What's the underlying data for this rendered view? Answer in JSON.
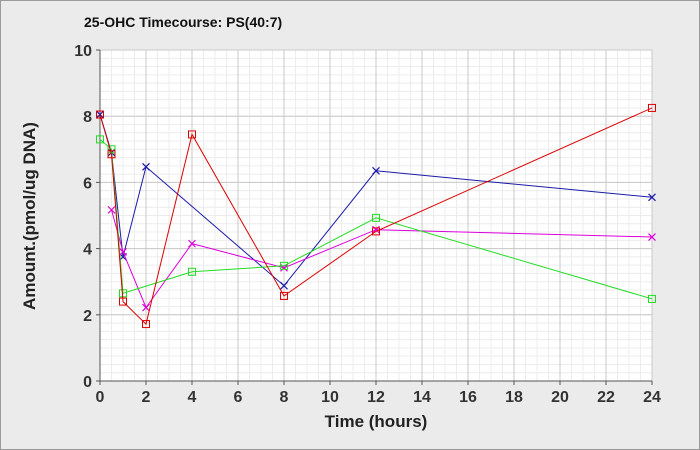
{
  "chart_data": {
    "type": "line",
    "title": "25-OHC Timecourse: PS(40:7)",
    "xlabel": "Time (hours)",
    "ylabel": "Amount.(pmol/ug DNA)",
    "xlim": [
      0,
      24
    ],
    "ylim": [
      0,
      10
    ],
    "xticks": [
      0,
      2,
      4,
      6,
      8,
      10,
      12,
      14,
      16,
      18,
      20,
      22,
      24
    ],
    "yticks": [
      0,
      2,
      4,
      6,
      8,
      10
    ],
    "grid": true,
    "legend": "none",
    "series": [
      {
        "color": "#1a1aa8",
        "marker": "x",
        "points": [
          [
            0,
            8.05
          ],
          [
            0.5,
            6.9
          ],
          [
            1,
            3.75
          ],
          [
            2,
            6.47
          ],
          [
            8,
            2.88
          ],
          [
            12,
            6.35
          ],
          [
            24,
            5.55
          ]
        ]
      },
      {
        "color": "#dd00dd",
        "marker": "x",
        "points": [
          [
            0.5,
            5.17
          ],
          [
            1,
            3.9
          ],
          [
            2,
            2.22
          ],
          [
            4,
            4.15
          ],
          [
            8,
            3.42
          ],
          [
            12,
            4.57
          ],
          [
            24,
            4.35
          ]
        ]
      },
      {
        "color": "#22dd22",
        "marker": "square",
        "points": [
          [
            0,
            7.3
          ],
          [
            0.5,
            7.0
          ],
          [
            1,
            2.65
          ],
          [
            4,
            3.3
          ],
          [
            8,
            3.48
          ],
          [
            12,
            4.93
          ],
          [
            24,
            2.48
          ]
        ]
      },
      {
        "color": "#dd0000",
        "marker": "square",
        "points": [
          [
            0,
            8.05
          ],
          [
            0.5,
            6.85
          ],
          [
            1,
            2.4
          ],
          [
            2,
            1.72
          ],
          [
            4,
            7.45
          ],
          [
            8,
            2.57
          ],
          [
            12,
            4.52
          ],
          [
            24,
            8.25
          ]
        ]
      }
    ]
  }
}
